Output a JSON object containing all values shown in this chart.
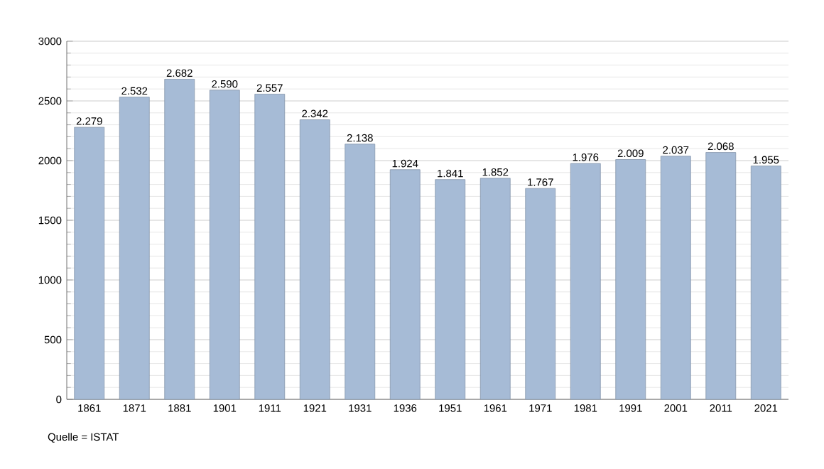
{
  "chart_data": {
    "type": "bar",
    "categories": [
      "1861",
      "1871",
      "1881",
      "1901",
      "1911",
      "1921",
      "1931",
      "1936",
      "1951",
      "1961",
      "1971",
      "1981",
      "1991",
      "2001",
      "2011",
      "2021"
    ],
    "values": [
      2279,
      2532,
      2682,
      2590,
      2557,
      2342,
      2138,
      1924,
      1841,
      1852,
      1767,
      1976,
      2009,
      2037,
      2068,
      1955
    ],
    "value_labels": [
      "2.279",
      "2.532",
      "2.682",
      "2.590",
      "2.557",
      "2.342",
      "2.138",
      "1.924",
      "1.841",
      "1.852",
      "1.767",
      "1.976",
      "2.009",
      "2.037",
      "2.068",
      "1.955"
    ],
    "color": "#a6bbd6",
    "ylim": [
      0,
      3000
    ],
    "yticks": [
      0,
      500,
      1000,
      1500,
      2000,
      2500,
      3000
    ],
    "grid": "y",
    "annotations": [
      "Quelle = ISTAT"
    ]
  }
}
